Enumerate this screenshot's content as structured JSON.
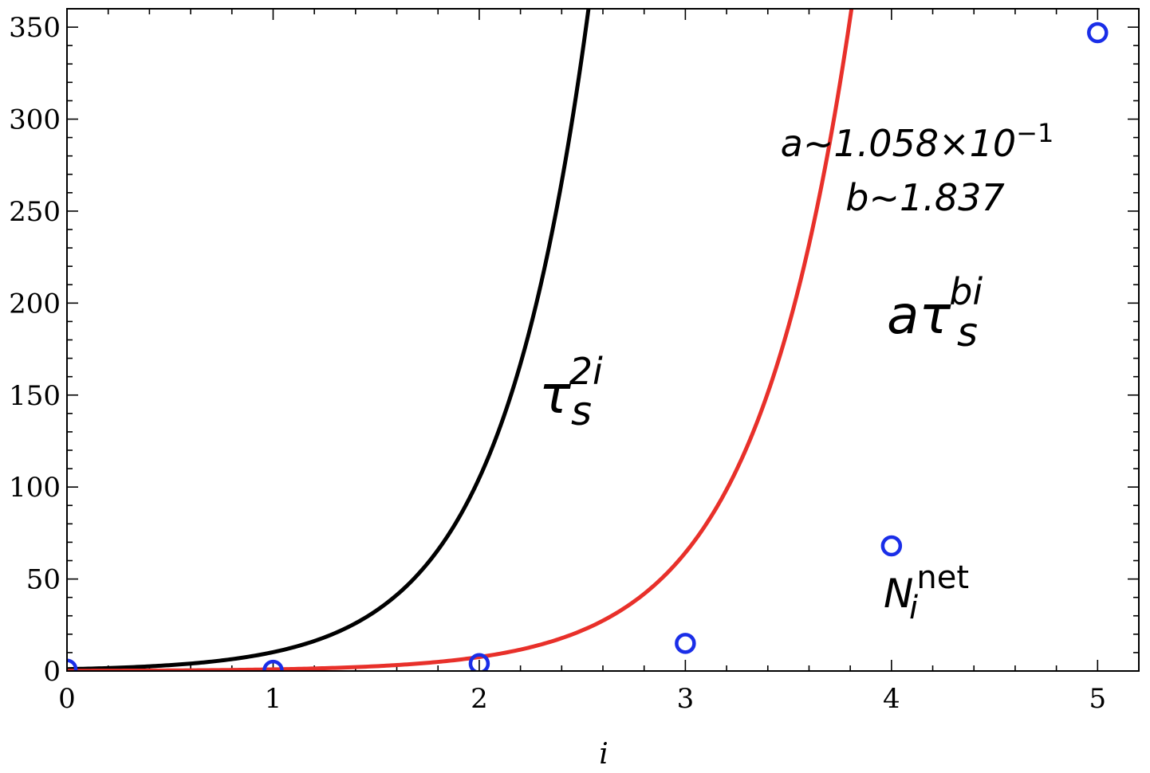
{
  "chart_data": {
    "type": "line",
    "xlabel": "i",
    "ylabel": "",
    "xlim": [
      0,
      5.2
    ],
    "ylim": [
      0,
      360
    ],
    "xticks": [
      0,
      1,
      2,
      3,
      4,
      5
    ],
    "yticks": [
      0,
      50,
      100,
      150,
      200,
      250,
      300,
      350
    ],
    "xtick_labels": [
      "0",
      "1",
      "2",
      "3",
      "4",
      "5"
    ],
    "ytick_labels": [
      "0",
      "50",
      "100",
      "150",
      "200",
      "250",
      "300",
      "350"
    ],
    "minor_xtick_step": 0.2,
    "minor_ytick_step": 10,
    "tau_s": 3.2,
    "fit_a": 0.1058,
    "fit_b": 1.837,
    "series": [
      {
        "label_base": "τ",
        "label_sub": "s",
        "label_sup": "2i",
        "color": "#000000",
        "kind": "line",
        "exponent_factor": 2,
        "prefactor": 1
      },
      {
        "label_base": "aτ",
        "label_sub": "s",
        "label_sup": "bi",
        "color": "#e8302a",
        "kind": "line",
        "exponent_factor": 1.837,
        "prefactor": 0.1058
      },
      {
        "label_base": "N",
        "label_sub": "i",
        "label_sup": "net",
        "color": "#1a2ee8",
        "kind": "scatter",
        "x": [
          0,
          1,
          2,
          3,
          4,
          5
        ],
        "y": [
          1,
          0.4,
          4,
          15,
          68,
          347
        ]
      }
    ],
    "annotations": {
      "fit_a_text": "a~1.058×10",
      "fit_a_exp": "−1",
      "fit_b_text": "b~1.837"
    }
  }
}
